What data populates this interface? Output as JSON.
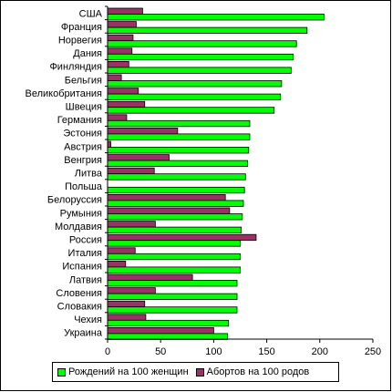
{
  "chart_data": {
    "type": "bar",
    "orientation": "horizontal",
    "categories": [
      "США",
      "Франция",
      "Норвегия",
      "Дания",
      "Финляндия",
      "Бельгия",
      "Великобритания",
      "Швеция",
      "Германия",
      "Эстония",
      "Австрия",
      "Венгрия",
      "Литва",
      "Польша",
      "Белоруссия",
      "Румыния",
      "Молдавия",
      "Россия",
      "Италия",
      "Испания",
      "Латвия",
      "Словения",
      "Словакия",
      "Чехия",
      "Украина"
    ],
    "series": [
      {
        "name": "Рождений на 100 женщин",
        "color": "#00ff00",
        "values": [
          204,
          188,
          178,
          175,
          173,
          164,
          163,
          157,
          134,
          134,
          133,
          132,
          130,
          129,
          128,
          127,
          126,
          125,
          125,
          125,
          122,
          122,
          122,
          114,
          113
        ]
      },
      {
        "name": "Абортов на 100 родов",
        "color": "#993366",
        "values": [
          33,
          27,
          24,
          23,
          20,
          13,
          29,
          35,
          18,
          66,
          3,
          58,
          44,
          0,
          111,
          115,
          45,
          140,
          26,
          17,
          80,
          45,
          35,
          36,
          100
        ]
      }
    ],
    "xticks": [
      "0",
      "50",
      "100",
      "150",
      "200",
      "250"
    ],
    "xlim": [
      0,
      250
    ],
    "grid": false,
    "legend_position": "bottom"
  }
}
